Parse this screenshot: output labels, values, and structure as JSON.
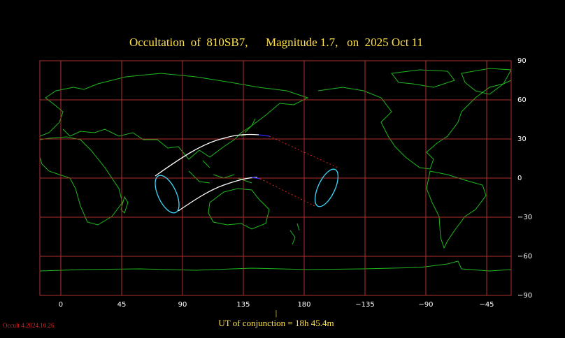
{
  "chart_data": {
    "type": "map",
    "title": "Occultation  of  810SB7,      Magnitude 1.7,   on  2025 Oct 11",
    "xlim": [
      -15.5,
      -26.9
    ],
    "xticks": [
      0,
      45,
      90,
      135,
      180,
      {
        "value": -135,
        "label": "−135"
      },
      {
        "value": -90,
        "label": "−90"
      },
      {
        "value": -45,
        "label": "−45"
      }
    ],
    "ylim": [
      -90,
      90
    ],
    "yticks": [
      90,
      60,
      30,
      0,
      {
        "value": -30,
        "label": "−30"
      },
      {
        "value": -60,
        "label": "−60"
      },
      {
        "value": -90,
        "label": "−90"
      }
    ],
    "grid": true,
    "grid_color": "#b03030",
    "footer": "UT of conjunction = 18h 45.4m",
    "marker": "|",
    "version": "Occult 4.2024.10.26"
  }
}
